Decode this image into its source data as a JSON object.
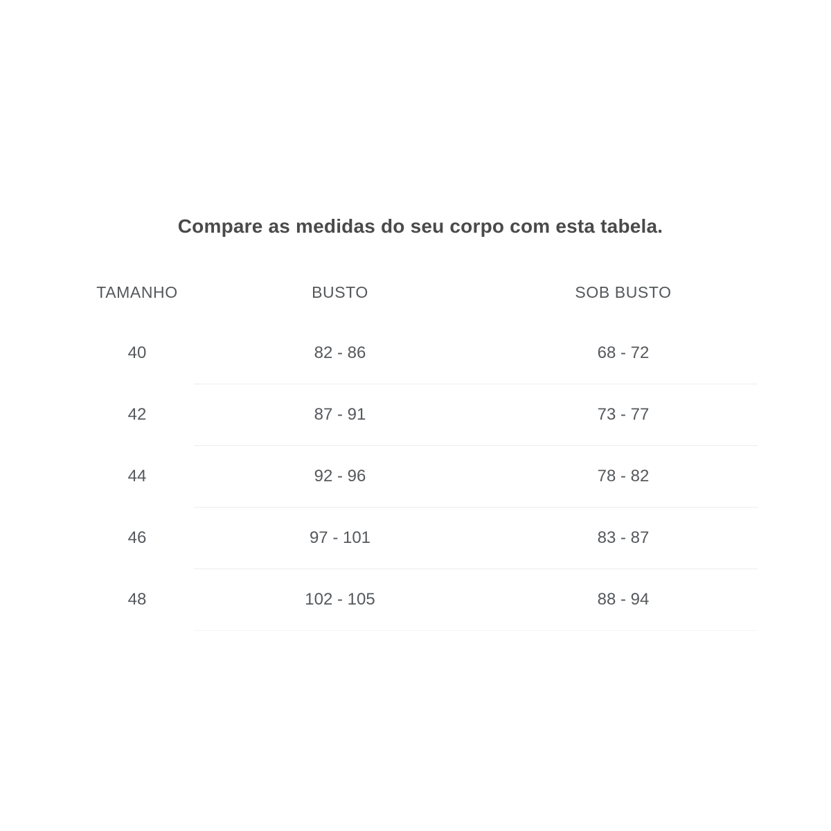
{
  "chart_data": {
    "type": "table",
    "title": "Compare as medidas do seu corpo com esta tabela.",
    "columns": [
      "TAMANHO",
      "BUSTO",
      "SOB BUSTO"
    ],
    "rows": [
      [
        "40",
        "82 - 86",
        "68 - 72"
      ],
      [
        "42",
        "87 - 91",
        "73 - 77"
      ],
      [
        "44",
        "92 - 96",
        "78 - 82"
      ],
      [
        "46",
        "97 - 101",
        "83 - 87"
      ],
      [
        "48",
        "102 - 105",
        "88 - 94"
      ]
    ],
    "layout": {
      "grid": "horizontal row dividers only, dividers skip first column",
      "header_style": "uppercase, regular weight",
      "title_position": "centered above table"
    },
    "colors": {
      "background": "#ffffff",
      "title_text": "#4a4a4a",
      "body_text": "#55585c",
      "row_divider": "#ededed"
    }
  }
}
